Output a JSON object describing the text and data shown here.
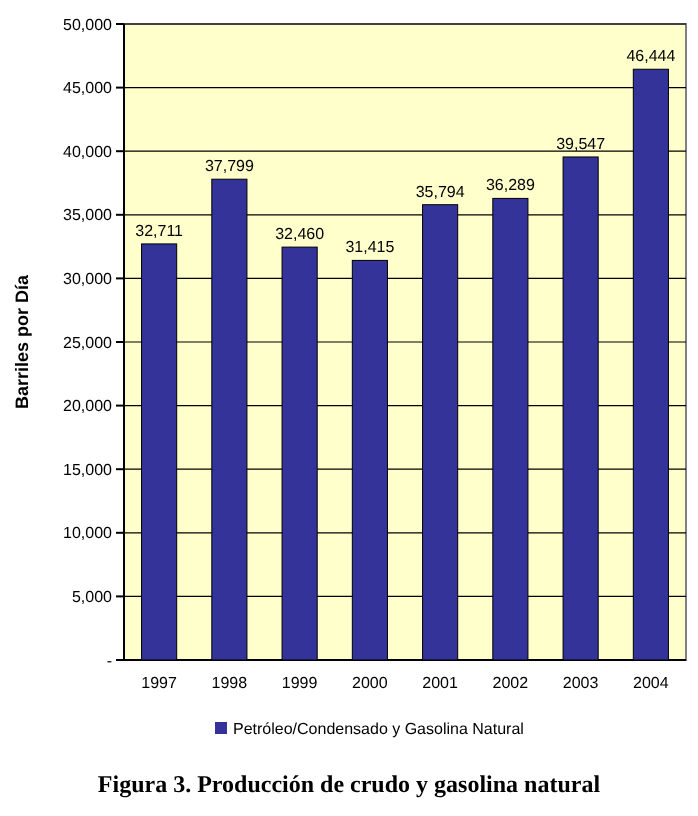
{
  "chart_data": {
    "type": "bar",
    "ylabel": "Barriles por Día",
    "categories": [
      "1997",
      "1998",
      "1999",
      "2000",
      "2001",
      "2002",
      "2003",
      "2004"
    ],
    "series": [
      {
        "name": "Petróleo/Condensado y Gasolina Natural",
        "color": "#333399",
        "values": [
          32711,
          37799,
          32460,
          31415,
          35794,
          36289,
          39547,
          46444
        ],
        "value_labels": [
          "32,711",
          "37,799",
          "32,460",
          "31,415",
          "35,794",
          "36,289",
          "39,547",
          "46,444"
        ]
      }
    ],
    "ylim": [
      0,
      50000
    ],
    "yticks": [
      {
        "value": 0,
        "label": "-"
      },
      {
        "value": 5000,
        "label": "5,000"
      },
      {
        "value": 10000,
        "label": "10,000"
      },
      {
        "value": 15000,
        "label": "15,000"
      },
      {
        "value": 20000,
        "label": "20,000"
      },
      {
        "value": 25000,
        "label": "25,000"
      },
      {
        "value": 30000,
        "label": "30,000"
      },
      {
        "value": 35000,
        "label": "35,000"
      },
      {
        "value": 40000,
        "label": "40,000"
      },
      {
        "value": 45000,
        "label": "45,000"
      },
      {
        "value": 50000,
        "label": "50,000"
      }
    ],
    "grid": "y",
    "legend": "bottom",
    "annotations": [
      "Figura 3. Producción de crudo y gasolina natural"
    ]
  }
}
